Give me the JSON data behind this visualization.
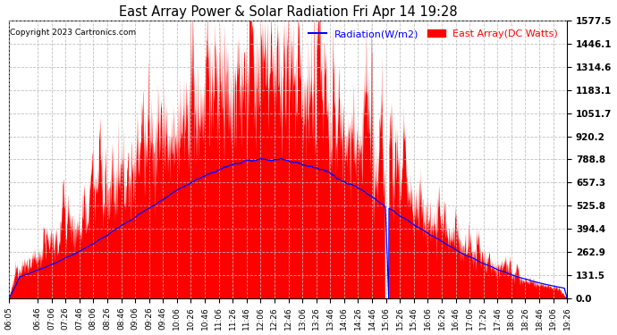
{
  "title": "East Array Power & Solar Radiation Fri Apr 14 19:28",
  "copyright": "Copyright 2023 Cartronics.com",
  "legend_radiation": "Radiation(W/m2)",
  "legend_east_array": "East Array(DC Watts)",
  "legend_radiation_color": "blue",
  "legend_east_color": "red",
  "ymin": 0.0,
  "ymax": 1577.5,
  "yticks": [
    0.0,
    131.5,
    262.9,
    394.4,
    525.8,
    657.3,
    788.8,
    920.2,
    1051.7,
    1183.1,
    1314.6,
    1446.1,
    1577.5
  ],
  "bg_color": "#ffffff",
  "plot_bg_color": "#ffffff",
  "grid_color": "#bbbbbb",
  "fill_color": "red",
  "line_color": "blue",
  "xtick_labels": [
    "06:05",
    "06:46",
    "07:06",
    "07:26",
    "07:46",
    "08:06",
    "08:26",
    "08:46",
    "09:06",
    "09:26",
    "09:46",
    "10:06",
    "10:26",
    "10:46",
    "11:06",
    "11:26",
    "11:46",
    "12:06",
    "12:26",
    "12:46",
    "13:06",
    "13:26",
    "13:46",
    "14:06",
    "14:26",
    "14:46",
    "15:06",
    "15:26",
    "15:46",
    "16:06",
    "16:26",
    "16:46",
    "17:06",
    "17:26",
    "17:46",
    "18:06",
    "18:26",
    "18:46",
    "19:06",
    "19:26"
  ]
}
